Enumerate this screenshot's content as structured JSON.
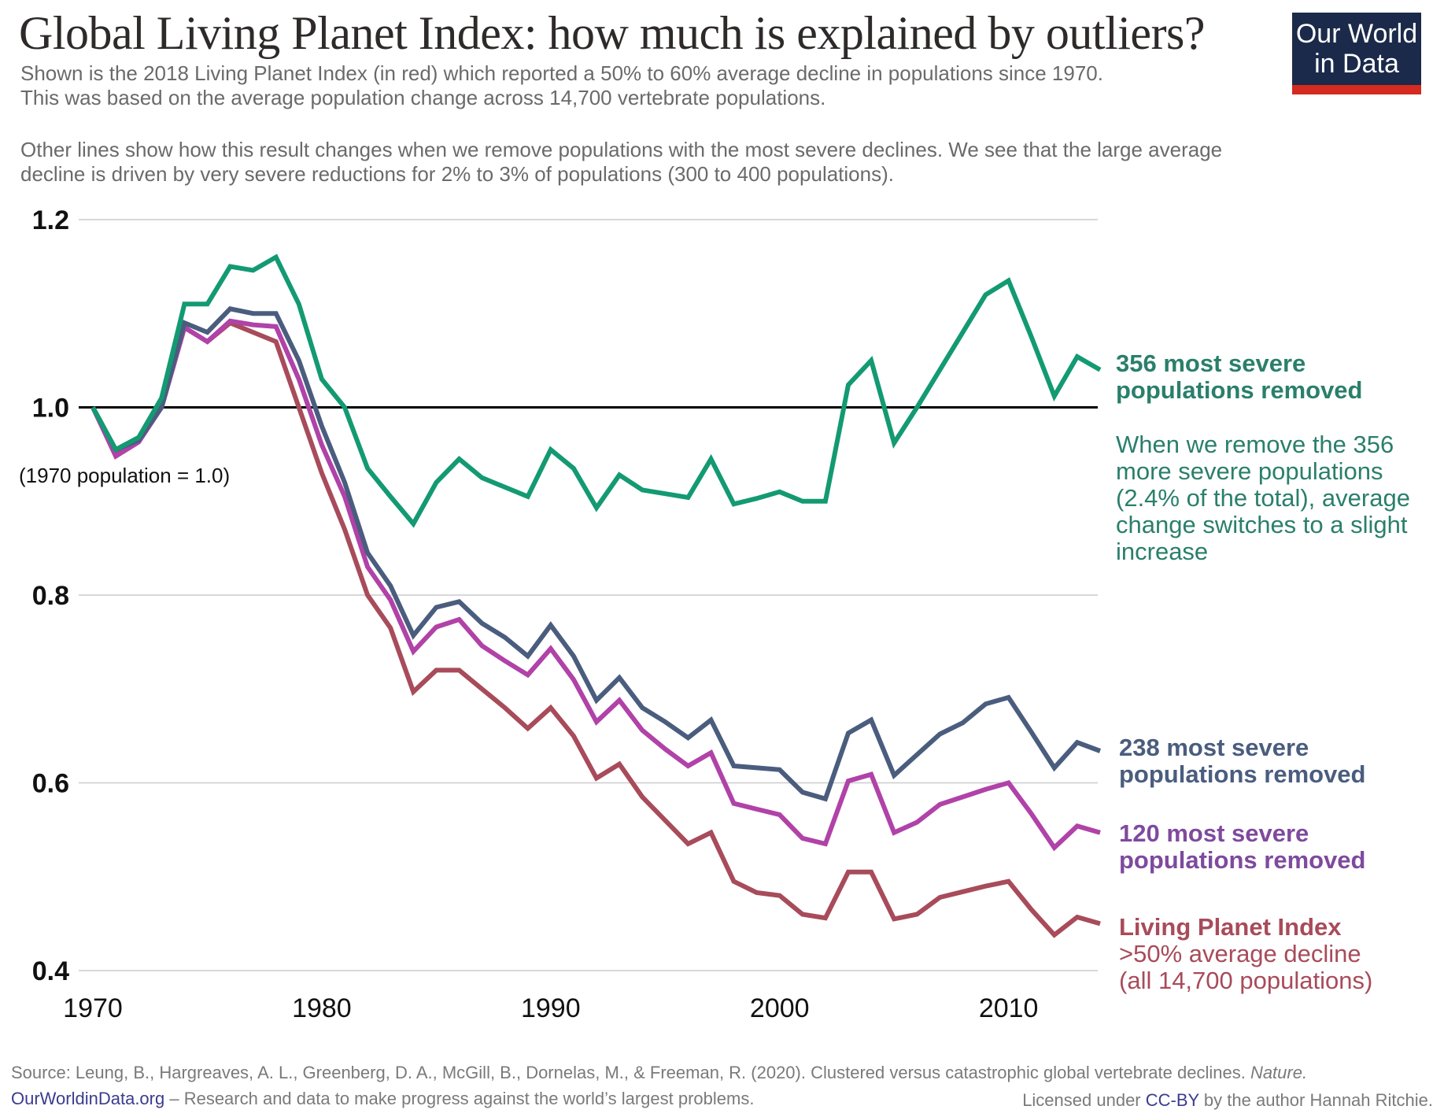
{
  "header": {
    "title": "Global Living Planet Index: how much is explained by outliers?",
    "subtitle_1_line1": "Shown is the 2018 Living Planet Index (in red) which reported a 50% to 60% average decline in populations since 1970.",
    "subtitle_1_line2": "This was based on the average population change across 14,700 vertebrate populations.",
    "subtitle_2_line1": "Other lines show how this result changes when we remove populations with the most severe declines. We see that the large average",
    "subtitle_2_line2": "decline is driven by very severe reductions for 2% to 3% of populations (300 to 400 populations).",
    "logo_line1": "Our World",
    "logo_line2": "in Data"
  },
  "colors": {
    "green": "#139a72",
    "green_text": "#2a7f6b",
    "navy": "#4a5d7e",
    "magenta": "#b042a8",
    "purple_text": "#7e4a9e",
    "red": "#a84b5a",
    "logo_bg": "#1b2a4a",
    "logo_bar": "#d42a20"
  },
  "chart_data": {
    "type": "line",
    "title": "Global Living Planet Index: how much is explained by outliers?",
    "xlabel": "",
    "ylabel": "",
    "y_note": "(1970 population = 1.0)",
    "xlim": [
      1970,
      2014
    ],
    "ylim": [
      0.4,
      1.2
    ],
    "x_ticks": [
      "1970",
      "1980",
      "1990",
      "2000",
      "2010"
    ],
    "y_ticks": [
      "1.2",
      "1.0",
      "0.8",
      "0.6",
      "0.4"
    ],
    "grid": true,
    "reference_line": 1.0,
    "x": [
      1970,
      1971,
      1972,
      1973,
      1974,
      1975,
      1976,
      1977,
      1978,
      1979,
      1980,
      1981,
      1982,
      1983,
      1984,
      1985,
      1986,
      1987,
      1988,
      1989,
      1990,
      1991,
      1992,
      1993,
      1994,
      1995,
      1996,
      1997,
      1998,
      1999,
      2000,
      2001,
      2002,
      2003,
      2004,
      2005,
      2006,
      2007,
      2008,
      2009,
      2010,
      2011,
      2012,
      2013,
      2014
    ],
    "series": [
      {
        "name": "356 most severe populations removed",
        "color": "#139a72",
        "values": [
          1.0,
          0.955,
          0.968,
          1.01,
          1.11,
          1.11,
          1.15,
          1.146,
          1.16,
          1.11,
          1.03,
          1.0,
          0.935,
          0.905,
          0.876,
          0.92,
          0.945,
          0.925,
          0.915,
          0.905,
          0.955,
          0.935,
          0.893,
          0.928,
          0.912,
          0.908,
          0.904,
          0.945,
          0.897,
          0.903,
          0.91,
          0.9,
          0.9,
          1.024,
          1.05,
          0.962,
          1.0,
          1.04,
          1.08,
          1.12,
          1.135,
          1.075,
          1.012,
          1.054,
          1.04
        ]
      },
      {
        "name": "238 most severe populations removed",
        "color": "#4a5d7e",
        "values": [
          1.0,
          0.955,
          0.965,
          1.0,
          1.09,
          1.08,
          1.105,
          1.1,
          1.1,
          1.05,
          0.98,
          0.92,
          0.845,
          0.81,
          0.757,
          0.787,
          0.793,
          0.77,
          0.755,
          0.735,
          0.768,
          0.735,
          0.688,
          0.712,
          0.68,
          0.665,
          0.648,
          0.667,
          0.618,
          0.616,
          0.614,
          0.59,
          0.583,
          0.653,
          0.667,
          0.608,
          0.63,
          0.652,
          0.664,
          0.684,
          0.691,
          0.654,
          0.616,
          0.643,
          0.634
        ]
      },
      {
        "name": "120 most severe populations removed",
        "color": "#b042a8",
        "values": [
          1.0,
          0.948,
          0.963,
          1.0,
          1.085,
          1.07,
          1.092,
          1.088,
          1.086,
          1.03,
          0.96,
          0.905,
          0.83,
          0.795,
          0.74,
          0.766,
          0.774,
          0.746,
          0.73,
          0.715,
          0.743,
          0.71,
          0.665,
          0.688,
          0.656,
          0.636,
          0.618,
          0.632,
          0.578,
          0.572,
          0.566,
          0.541,
          0.535,
          0.602,
          0.609,
          0.547,
          0.558,
          0.577,
          0.585,
          0.593,
          0.6,
          0.567,
          0.531,
          0.554,
          0.547
        ]
      },
      {
        "name": "Living Planet Index",
        "color": "#a84b5a",
        "values": [
          1.0,
          0.95,
          0.965,
          1.0,
          1.085,
          1.07,
          1.09,
          1.08,
          1.07,
          1.0,
          0.93,
          0.87,
          0.8,
          0.765,
          0.697,
          0.72,
          0.72,
          0.7,
          0.68,
          0.658,
          0.68,
          0.65,
          0.605,
          0.62,
          0.585,
          0.56,
          0.535,
          0.547,
          0.495,
          0.483,
          0.48,
          0.46,
          0.456,
          0.505,
          0.505,
          0.455,
          0.46,
          0.478,
          0.484,
          0.49,
          0.495,
          0.465,
          0.438,
          0.457,
          0.45
        ]
      }
    ],
    "annotations": {
      "green_label_line1": "356 most severe",
      "green_label_line2": "populations removed",
      "green_note_line1": "When we remove the 356",
      "green_note_line2": "more severe populations",
      "green_note_line3": "(2.4% of the total), average",
      "green_note_line4": "change switches to a slight",
      "green_note_line5": "increase",
      "navy_label_line1": "238 most severe",
      "navy_label_line2": "populations removed",
      "magenta_label_line1": "120 most severe",
      "magenta_label_line2": "populations removed",
      "red_label_line1": "Living Planet Index",
      "red_label_line2": ">50% average decline",
      "red_label_line3": "(all 14,700 populations)"
    }
  },
  "footer": {
    "source_prefix": "Source: Leung, B., Hargreaves, A. L., Greenberg, D. A., McGill, B., Dornelas, M., & Freeman, R. (2020). Clustered versus catastrophic global vertebrate declines. ",
    "source_journal": "Nature.",
    "site_link": "OurWorldinData.org",
    "site_tagline": " – Research and data to make progress against the world’s largest problems.",
    "license_prefix": "Licensed under ",
    "license_link": "CC-BY",
    "license_suffix": " by the author Hannah Ritchie."
  }
}
